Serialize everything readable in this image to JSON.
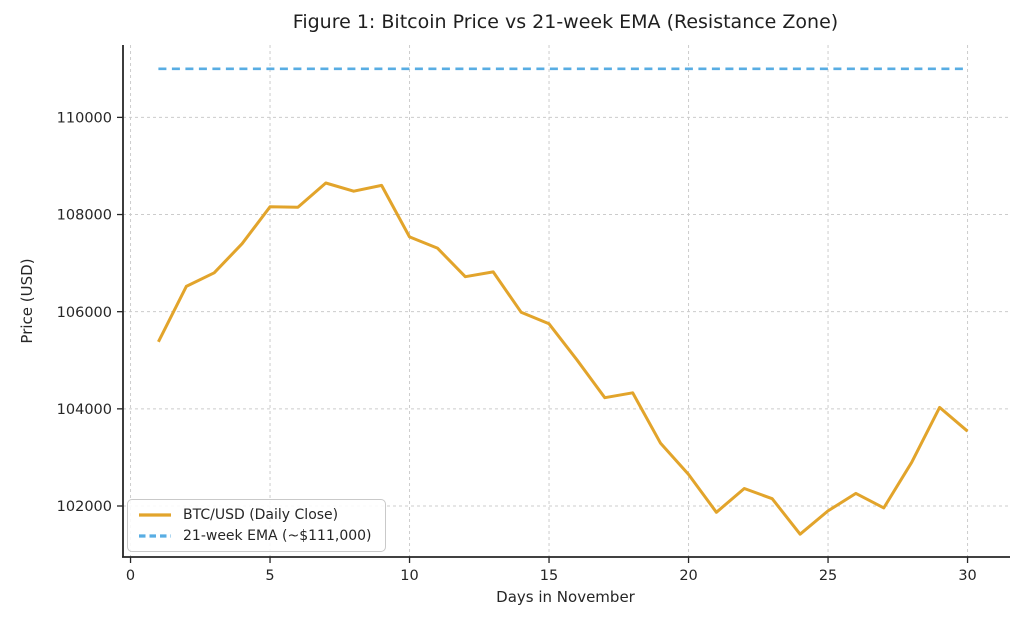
{
  "chart_data": {
    "type": "line",
    "title": "Figure 1: Bitcoin Price vs 21-week EMA (Resistance Zone)",
    "xlabel": "Days in November",
    "ylabel": "Price (USD)",
    "xlim": [
      -0.27,
      31.45
    ],
    "ylim": [
      100950,
      111490
    ],
    "x_ticks": [
      0,
      5,
      10,
      15,
      20,
      25,
      30
    ],
    "y_ticks": [
      102000,
      104000,
      106000,
      108000,
      110000
    ],
    "grid": true,
    "grid_style": "dashed-light-gray",
    "legend_position": "lower left",
    "x": [
      1,
      2,
      3,
      4,
      5,
      6,
      7,
      8,
      9,
      10,
      11,
      12,
      13,
      14,
      15,
      16,
      17,
      18,
      19,
      20,
      21,
      22,
      23,
      24,
      25,
      26,
      27,
      28,
      29,
      30
    ],
    "series": [
      {
        "name": "BTC/USD (Daily Close)",
        "color": "#E2A42B",
        "style": "solid",
        "line_width": 3,
        "values": [
          105380,
          106520,
          106800,
          107400,
          108160,
          108150,
          108650,
          108480,
          108600,
          107540,
          107310,
          106720,
          106820,
          105990,
          105750,
          105010,
          104230,
          104330,
          103290,
          102650,
          101870,
          102360,
          102150,
          101420,
          101900,
          102260,
          101960,
          102900,
          104030,
          103540
        ]
      },
      {
        "name": "21-week EMA (~$111,000)",
        "color": "#58ADE3",
        "style": "dashed",
        "line_width": 2.6,
        "values": [
          111000,
          111000,
          111000,
          111000,
          111000,
          111000,
          111000,
          111000,
          111000,
          111000,
          111000,
          111000,
          111000,
          111000,
          111000,
          111000,
          111000,
          111000,
          111000,
          111000,
          111000,
          111000,
          111000,
          111000,
          111000,
          111000,
          111000,
          111000,
          111000,
          111000
        ]
      }
    ]
  },
  "colors": {
    "background": "#ffffff",
    "text": "#262626",
    "spine": "#262626",
    "grid": "#cccccc",
    "legend_border": "#c9c9c9",
    "btc_line": "#E2A42B",
    "ema_line": "#58ADE3"
  }
}
